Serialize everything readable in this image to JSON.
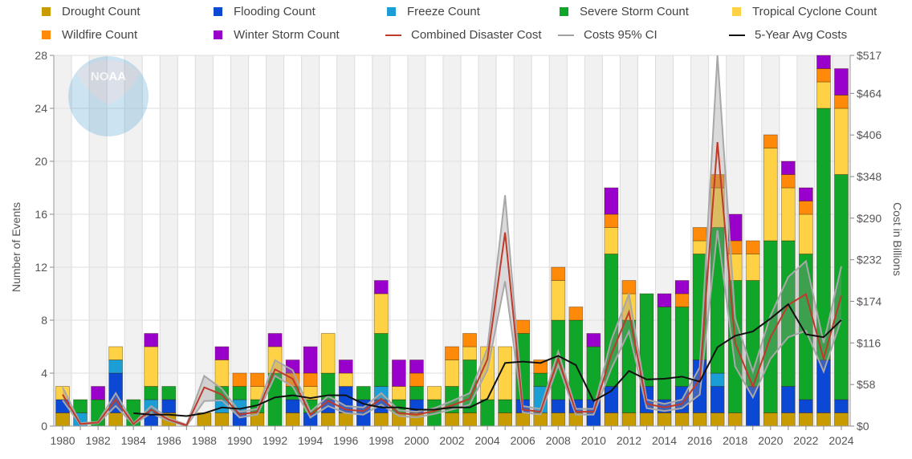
{
  "chart_data": {
    "type": "bar",
    "stacked": true,
    "ylabel": "Number of Events",
    "y2label": "Cost in Billions",
    "ylim": [
      0,
      28
    ],
    "y2lim": [
      0,
      517
    ],
    "yticks": [
      "0",
      "4",
      "8",
      "12",
      "16",
      "20",
      "24",
      "28"
    ],
    "y2ticks": [
      "$0",
      "$58",
      "$116",
      "$174",
      "$232",
      "$290",
      "$348",
      "$406",
      "$464",
      "$517"
    ],
    "xticks": [
      "1980",
      "1982",
      "1984",
      "1986",
      "1988",
      "1990",
      "1992",
      "1994",
      "1996",
      "1998",
      "2000",
      "2002",
      "2004",
      "2006",
      "2008",
      "2010",
      "2012",
      "2014",
      "2016",
      "2018",
      "2020",
      "2022",
      "2024"
    ],
    "legend_position": "top",
    "grid": true,
    "x": [
      1980,
      1981,
      1982,
      1983,
      1984,
      1985,
      1986,
      1987,
      1988,
      1989,
      1990,
      1991,
      1992,
      1993,
      1994,
      1995,
      1996,
      1997,
      1998,
      1999,
      2000,
      2001,
      2002,
      2003,
      2004,
      2005,
      2006,
      2007,
      2008,
      2009,
      2010,
      2011,
      2012,
      2013,
      2014,
      2015,
      2016,
      2017,
      2018,
      2019,
      2020,
      2021,
      2022,
      2023,
      2024
    ],
    "series": [
      {
        "name": "Drought Count",
        "color": "#c89b00",
        "values": [
          1,
          0,
          0,
          1,
          0,
          0,
          1,
          0,
          1,
          1,
          0,
          1,
          0,
          1,
          0,
          1,
          1,
          0,
          1,
          1,
          1,
          0,
          1,
          1,
          0,
          1,
          1,
          1,
          1,
          1,
          0,
          1,
          1,
          1,
          1,
          1,
          1,
          1,
          1,
          0,
          1,
          1,
          1,
          1,
          1
        ]
      },
      {
        "name": "Flooding Count",
        "color": "#0b48d4",
        "values": [
          1,
          0,
          0,
          3,
          0,
          1,
          1,
          0,
          0,
          0,
          1,
          0,
          0,
          1,
          1,
          1,
          2,
          2,
          1,
          0,
          1,
          0,
          0,
          0,
          0,
          0,
          1,
          0,
          1,
          1,
          2,
          2,
          0,
          2,
          1,
          2,
          4,
          2,
          0,
          3,
          0,
          2,
          1,
          4,
          1
        ]
      },
      {
        "name": "Freeze Count",
        "color": "#1b9ed6",
        "values": [
          0,
          1,
          0,
          1,
          0,
          1,
          0,
          0,
          0,
          1,
          1,
          0,
          0,
          0,
          0,
          0,
          0,
          0,
          1,
          0,
          0,
          0,
          0,
          0,
          0,
          0,
          0,
          2,
          0,
          0,
          0,
          0,
          0,
          0,
          0,
          0,
          0,
          1,
          0,
          0,
          0,
          0,
          0,
          0,
          0
        ]
      },
      {
        "name": "Severe Storm Count",
        "color": "#0fa62a",
        "values": [
          0,
          1,
          2,
          0,
          2,
          1,
          1,
          0,
          0,
          1,
          1,
          1,
          4,
          1,
          1,
          2,
          0,
          1,
          4,
          1,
          1,
          2,
          2,
          4,
          2,
          1,
          5,
          1,
          6,
          6,
          4,
          10,
          7,
          7,
          7,
          6,
          8,
          11,
          10,
          8,
          13,
          11,
          11,
          19,
          17
        ]
      },
      {
        "name": "Tropical Cyclone Count",
        "color": "#ffd246",
        "values": [
          1,
          0,
          0,
          1,
          0,
          3,
          0,
          0,
          0,
          2,
          0,
          1,
          2,
          0,
          1,
          3,
          1,
          0,
          3,
          1,
          0,
          1,
          2,
          1,
          4,
          4,
          0,
          0,
          3,
          0,
          0,
          2,
          2,
          0,
          0,
          0,
          1,
          3,
          2,
          2,
          7,
          4,
          3,
          2,
          5
        ]
      },
      {
        "name": "Wildfire Count",
        "color": "#ff8a0a",
        "values": [
          0,
          0,
          0,
          0,
          0,
          0,
          0,
          0,
          0,
          0,
          1,
          1,
          0,
          1,
          1,
          0,
          0,
          0,
          0,
          0,
          1,
          0,
          1,
          1,
          0,
          0,
          1,
          1,
          1,
          1,
          0,
          1,
          1,
          0,
          0,
          1,
          1,
          1,
          1,
          1,
          1,
          1,
          1,
          1,
          1
        ]
      },
      {
        "name": "Winter Storm Count",
        "color": "#9a00cc",
        "values": [
          0,
          0,
          1,
          0,
          0,
          1,
          0,
          0,
          0,
          1,
          0,
          0,
          1,
          1,
          2,
          0,
          1,
          0,
          1,
          2,
          1,
          0,
          0,
          0,
          0,
          0,
          0,
          0,
          0,
          0,
          1,
          2,
          0,
          0,
          1,
          1,
          0,
          0,
          2,
          0,
          0,
          1,
          1,
          1,
          2
        ]
      }
    ],
    "lines": [
      {
        "name": "Combined Disaster Cost",
        "color": "#c0392b",
        "axis": "y2",
        "start": 1980,
        "values": [
          44,
          3,
          5,
          37,
          3,
          23,
          9,
          1,
          54,
          44,
          16,
          20,
          79,
          66,
          16,
          35,
          23,
          21,
          38,
          18,
          16,
          21,
          29,
          38,
          93,
          270,
          23,
          20,
          94,
          20,
          20,
          100,
          159,
          31,
          26,
          31,
          65,
          396,
          116,
          55,
          124,
          169,
          184,
          94,
          182
        ]
      },
      {
        "name": "Costs 95% CI",
        "color": "#a0a0a0",
        "axis": "y2",
        "start": 1980,
        "lower": [
          36,
          2,
          4,
          28,
          2,
          18,
          7,
          0,
          35,
          36,
          12,
          16,
          70,
          55,
          12,
          28,
          18,
          16,
          30,
          14,
          12,
          17,
          23,
          30,
          78,
          202,
          19,
          16,
          85,
          16,
          16,
          80,
          132,
          25,
          21,
          25,
          44,
          273,
          83,
          40,
          94,
          124,
          133,
          76,
          149
        ],
        "upper": [
          54,
          4,
          6,
          46,
          4,
          28,
          11,
          2,
          70,
          52,
          20,
          24,
          92,
          78,
          20,
          42,
          28,
          26,
          46,
          22,
          20,
          25,
          35,
          46,
          108,
          322,
          28,
          24,
          104,
          24,
          24,
          120,
          184,
          37,
          31,
          37,
          82,
          517,
          150,
          76,
          154,
          208,
          230,
          116,
          223
        ]
      },
      {
        "name": "5-Year Avg Costs",
        "color": "#111111",
        "axis": "y2",
        "start": 1984,
        "values": [
          18,
          16,
          16,
          14,
          18,
          26,
          24,
          29,
          40,
          43,
          39,
          43,
          43,
          31,
          26,
          26,
          23,
          23,
          26,
          26,
          38,
          88,
          90,
          88,
          98,
          85,
          35,
          49,
          77,
          65,
          66,
          69,
          62,
          110,
          126,
          132,
          150,
          170,
          128,
          124,
          148
        ]
      }
    ]
  },
  "logo": {
    "text": "NOAA"
  }
}
